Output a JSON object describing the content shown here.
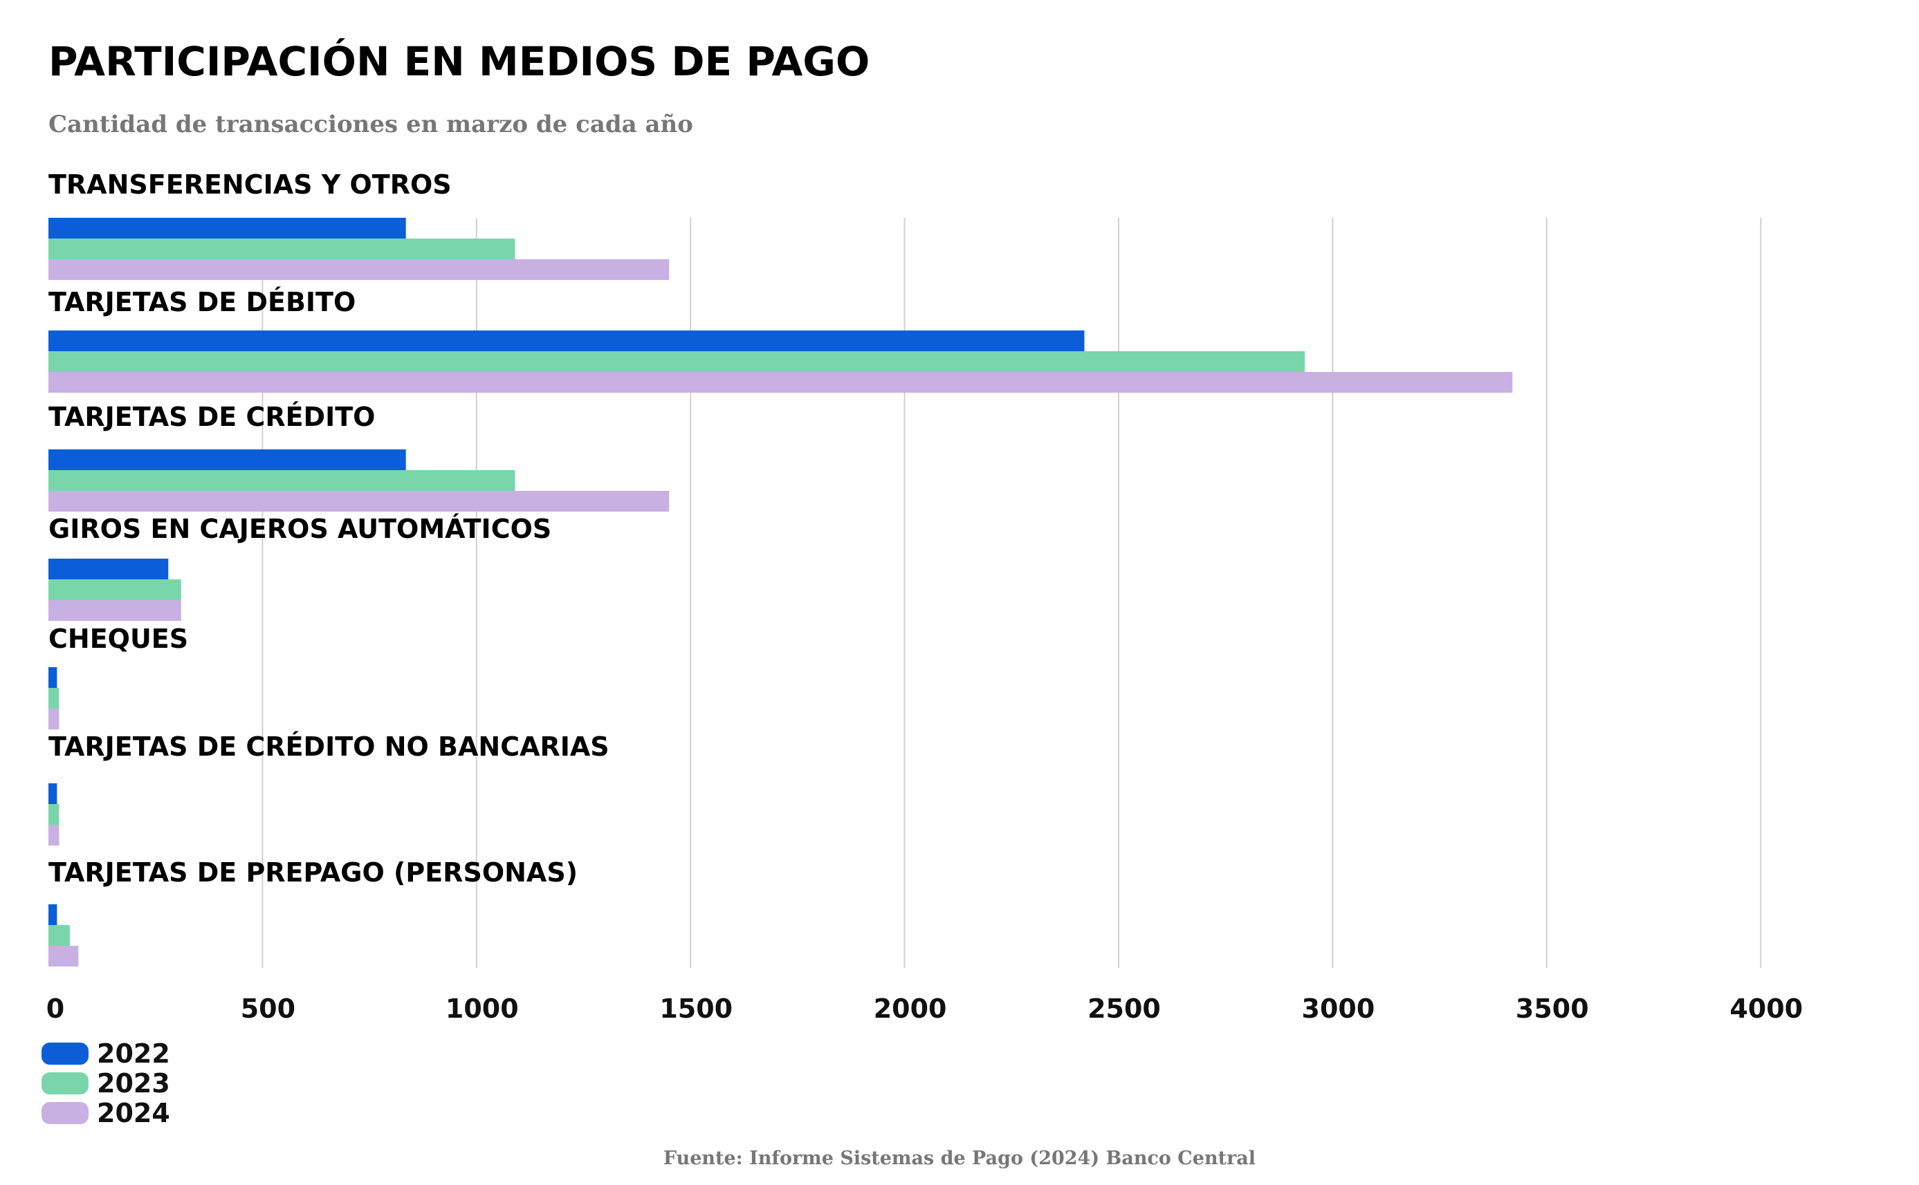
{
  "header": {
    "title": "PARTICIPACIÓN EN MEDIOS DE PAGO",
    "subtitle": "Cantidad de transacciones en marzo de cada año"
  },
  "footer": {
    "source": "Fuente: Informe Sistemas de Pago (2024) Banco Central"
  },
  "chart_data": {
    "type": "bar",
    "orientation": "horizontal",
    "title": "PARTICIPACIÓN EN MEDIOS DE PAGO",
    "subtitle": "Cantidad de transacciones en marzo de cada año",
    "categories": [
      "TRANSFERENCIAS Y OTROS",
      "TARJETAS DE DÉBITO",
      "TARJETAS DE CRÉDITO",
      "GIROS EN CAJEROS AUTOMÁTICOS",
      "CHEQUES",
      "TARJETAS DE CRÉDITO NO BANCARIAS",
      "TARJETAS DE PREPAGO (PERSONAS)"
    ],
    "series": [
      {
        "name": "2022",
        "color": "#0B5ED7",
        "values": [
          835,
          2420,
          835,
          280,
          20,
          20,
          20
        ]
      },
      {
        "name": "2023",
        "color": "#79D6AB",
        "values": [
          1090,
          2935,
          1090,
          310,
          25,
          25,
          50
        ]
      },
      {
        "name": "2024",
        "color": "#C9B0E3",
        "values": [
          1450,
          3420,
          1450,
          310,
          25,
          25,
          70
        ]
      }
    ],
    "xlim": [
      0,
      4000
    ],
    "xticks": [
      "0",
      "500",
      "1000",
      "1500",
      "2000",
      "2500",
      "3000",
      "3500",
      "4000"
    ],
    "grid": true,
    "legend": "bottom-left"
  }
}
